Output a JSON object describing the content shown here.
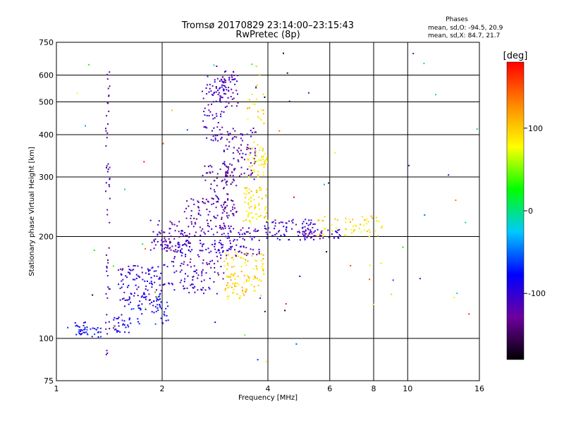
{
  "chart_data": {
    "type": "scatter",
    "title": "Tromsø 20170829 23:14:00–23:15:43",
    "subtitle": "RwPretec (8p)",
    "xlabel": "Frequency [MHz]",
    "ylabel": "Stationary phase Virtual Height [km]",
    "x_scale": "log",
    "y_scale": "log",
    "xlim": [
      1,
      16
    ],
    "ylim": [
      75,
      750
    ],
    "x_ticks": [
      "1",
      "2",
      "4",
      "6",
      "8",
      "10",
      "16"
    ],
    "y_ticks": [
      "750",
      "600",
      "500",
      "400",
      "300",
      "200",
      "100",
      "75"
    ],
    "grid": true,
    "stats": {
      "heading": "Phases",
      "o_line": "mean, sd,O: -94.5, 20.9",
      "x_line": "mean, sd,X:  84.7, 21.7"
    },
    "colorbar": {
      "label": "[deg]",
      "range": [
        -180,
        180
      ],
      "ticks": [
        "100",
        "0",
        "-100"
      ],
      "colors": [
        "#000000",
        "#6e00a0",
        "#0000ff",
        "#00c8ff",
        "#00ff00",
        "#ffff00",
        "#ff8800",
        "#ff0000"
      ]
    },
    "clusters": [
      {
        "f": [
          1.13,
          1.22
        ],
        "h": [
          102,
          112
        ],
        "phase": -85,
        "count": 26
      },
      {
        "f": [
          1.22,
          1.34
        ],
        "h": [
          100,
          108
        ],
        "phase": -80,
        "count": 18
      },
      {
        "f": [
          1.38,
          1.42
        ],
        "h": [
          82,
          640
        ],
        "phase": -120,
        "count": 55,
        "vertical": true
      },
      {
        "f": [
          1.45,
          1.62
        ],
        "h": [
          104,
          118
        ],
        "phase": -90,
        "count": 30
      },
      {
        "f": [
          1.5,
          2.0
        ],
        "h": [
          122,
          165
        ],
        "phase": -100,
        "count": 120
      },
      {
        "f": [
          1.6,
          2.1
        ],
        "h": [
          110,
          135
        ],
        "phase": -75,
        "count": 40
      },
      {
        "f": [
          1.85,
          2.4
        ],
        "h": [
          180,
          225
        ],
        "phase": -115,
        "count": 80
      },
      {
        "f": [
          2.0,
          3.0
        ],
        "h": [
          135,
          195
        ],
        "phase": -110,
        "count": 150
      },
      {
        "f": [
          2.3,
          3.2
        ],
        "h": [
          200,
          260
        ],
        "phase": -120,
        "count": 90
      },
      {
        "f": [
          2.6,
          3.3
        ],
        "h": [
          230,
          330
        ],
        "phase": -125,
        "count": 70
      },
      {
        "f": [
          2.6,
          3.0
        ],
        "h": [
          380,
          600
        ],
        "phase": -105,
        "count": 80
      },
      {
        "f": [
          2.9,
          3.3
        ],
        "h": [
          480,
          620
        ],
        "phase": -115,
        "count": 60
      },
      {
        "f": [
          3.0,
          3.7
        ],
        "h": [
          290,
          420
        ],
        "phase": -120,
        "count": 90
      },
      {
        "f": [
          2.8,
          3.8
        ],
        "h": [
          175,
          215
        ],
        "phase": -110,
        "count": 90
      },
      {
        "f": [
          3.0,
          3.9
        ],
        "h": [
          130,
          180
        ],
        "phase": 95,
        "count": 120
      },
      {
        "f": [
          3.4,
          4.0
        ],
        "h": [
          220,
          280
        ],
        "phase": 90,
        "count": 70
      },
      {
        "f": [
          3.5,
          4.0
        ],
        "h": [
          300,
          380
        ],
        "phase": 85,
        "count": 50
      },
      {
        "f": [
          3.5,
          3.9
        ],
        "h": [
          430,
          620
        ],
        "phase": 90,
        "count": 22
      },
      {
        "f": [
          3.9,
          5.5
        ],
        "h": [
          195,
          225
        ],
        "phase": -105,
        "count": 80
      },
      {
        "f": [
          5.0,
          6.5
        ],
        "h": [
          195,
          210
        ],
        "phase": -110,
        "count": 40
      },
      {
        "f": [
          5.5,
          8.5
        ],
        "h": [
          200,
          230
        ],
        "phase": 90,
        "count": 60
      },
      {
        "f": [
          1.05,
          16
        ],
        "h": [
          80,
          700
        ],
        "phase": 0,
        "count": 70,
        "sparse": true
      }
    ]
  }
}
